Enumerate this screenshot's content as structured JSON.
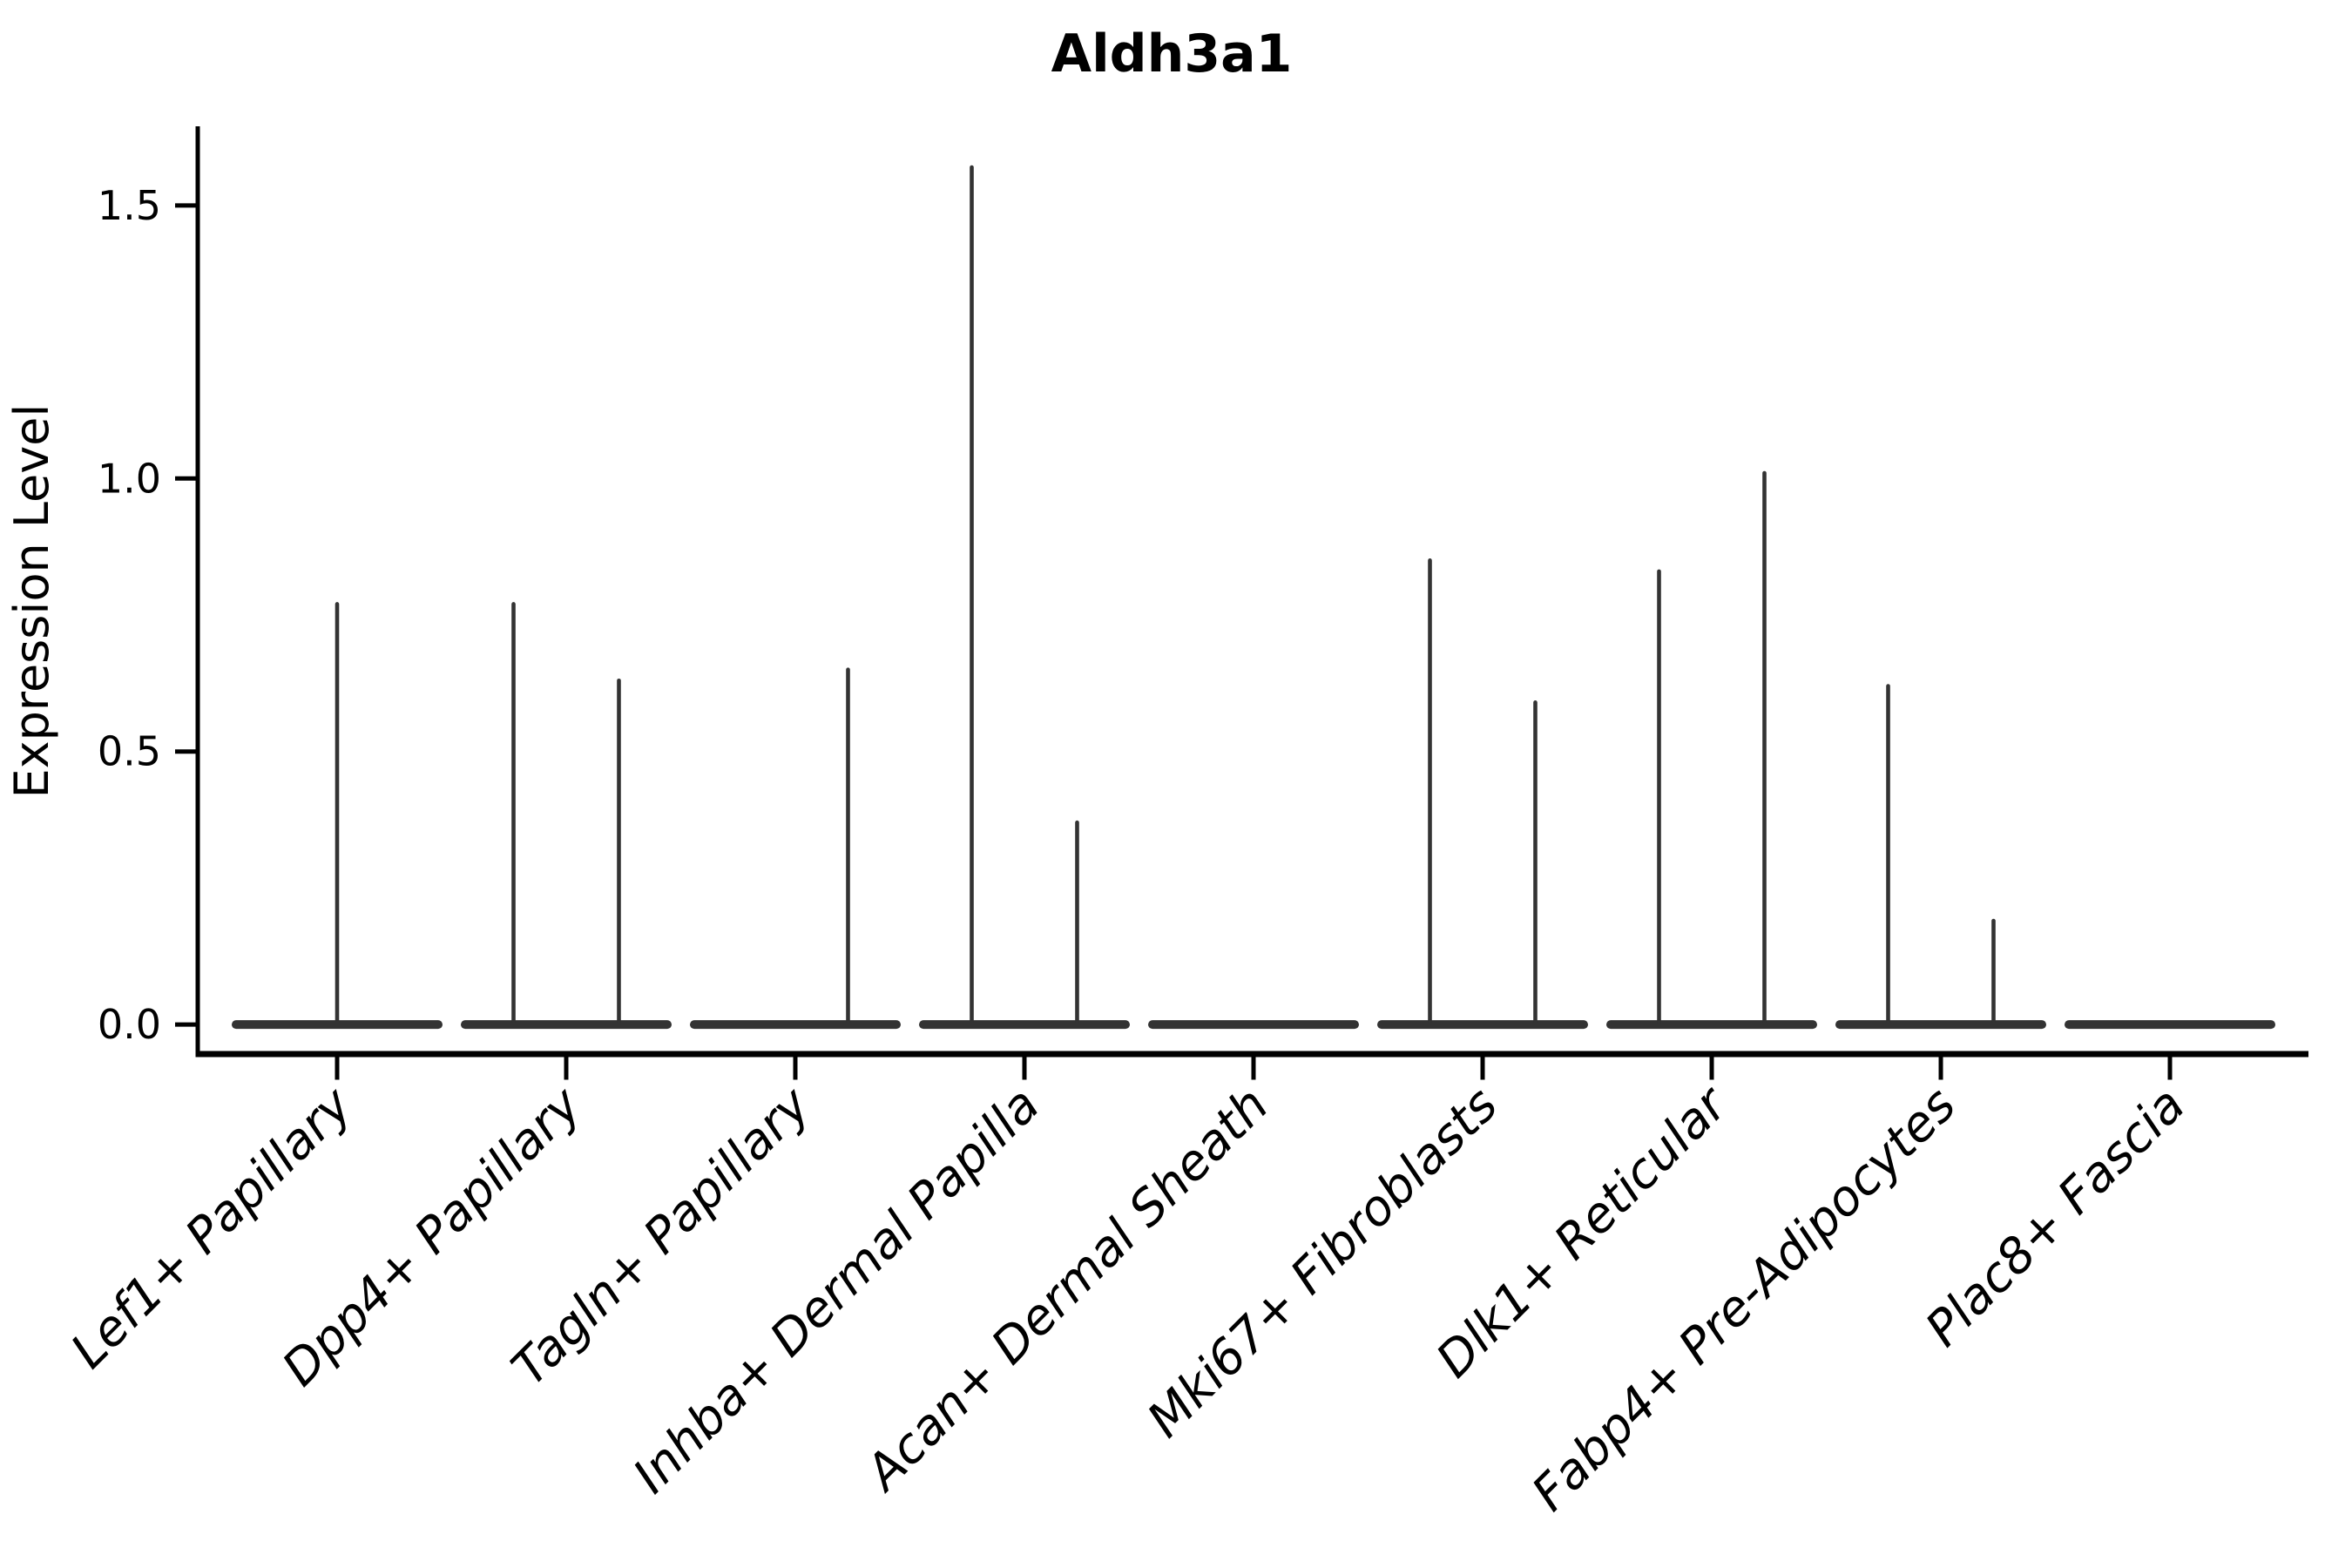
{
  "figure": {
    "background": "#ffffff"
  },
  "chart_data": {
    "type": "violin",
    "title": "Aldh3a1",
    "ylabel": "Expression Level",
    "xlabel": "",
    "ytick_labels": [
      "0.0",
      "0.5",
      "1.0",
      "1.5"
    ],
    "ytick_values": [
      0,
      0.5,
      1.0,
      1.5
    ],
    "ylim": [
      -0.054,
      1.645
    ],
    "grid": false,
    "legend": false,
    "x_label_angle_deg": 45,
    "colors": {
      "violin": "#333333",
      "axis": "#000000",
      "text": "#000000"
    },
    "categories": [
      "Lef1+ Papillary",
      "Dpp4+ Papillary",
      "Tagln+ Papillary",
      "Inhba+ Dermal Papilla",
      "Acan+ Dermal Sheath",
      "Mki67+ Fibroblasts",
      "Dlk1+ Reticular",
      "Fabp4+ Pre-Adipocytes",
      "Plac8+ Fascia"
    ],
    "violins": [
      {
        "category": "Lef1+ Papillary",
        "baseline_value": 0,
        "spikes": [
          {
            "offset_frac": 0,
            "max_value": 0.77
          }
        ]
      },
      {
        "category": "Dpp4+ Papillary",
        "baseline_value": 0,
        "spikes": [
          {
            "offset_frac": -0.23,
            "max_value": 0.77
          },
          {
            "offset_frac": 0.23,
            "max_value": 0.63
          }
        ]
      },
      {
        "category": "Tagln+ Papillary",
        "baseline_value": 0,
        "spikes": [
          {
            "offset_frac": 0.23,
            "max_value": 0.65
          }
        ]
      },
      {
        "category": "Inhba+ Dermal Papilla",
        "baseline_value": 0,
        "spikes": [
          {
            "offset_frac": -0.23,
            "max_value": 1.57
          },
          {
            "offset_frac": 0.23,
            "max_value": 0.37
          }
        ]
      },
      {
        "category": "Acan+ Dermal Sheath",
        "baseline_value": 0,
        "spikes": []
      },
      {
        "category": "Mki67+ Fibroblasts",
        "baseline_value": 0,
        "spikes": [
          {
            "offset_frac": -0.23,
            "max_value": 0.85
          },
          {
            "offset_frac": 0.23,
            "max_value": 0.59
          }
        ]
      },
      {
        "category": "Dlk1+ Reticular",
        "baseline_value": 0,
        "spikes": [
          {
            "offset_frac": -0.23,
            "max_value": 0.83
          },
          {
            "offset_frac": 0.23,
            "max_value": 1.01
          }
        ]
      },
      {
        "category": "Fabp4+ Pre-Adipocytes",
        "baseline_value": 0,
        "spikes": [
          {
            "offset_frac": -0.23,
            "max_value": 0.62
          },
          {
            "offset_frac": 0.23,
            "max_value": 0.19
          }
        ]
      },
      {
        "category": "Plac8+ Fascia",
        "baseline_value": 0,
        "spikes": []
      }
    ]
  }
}
